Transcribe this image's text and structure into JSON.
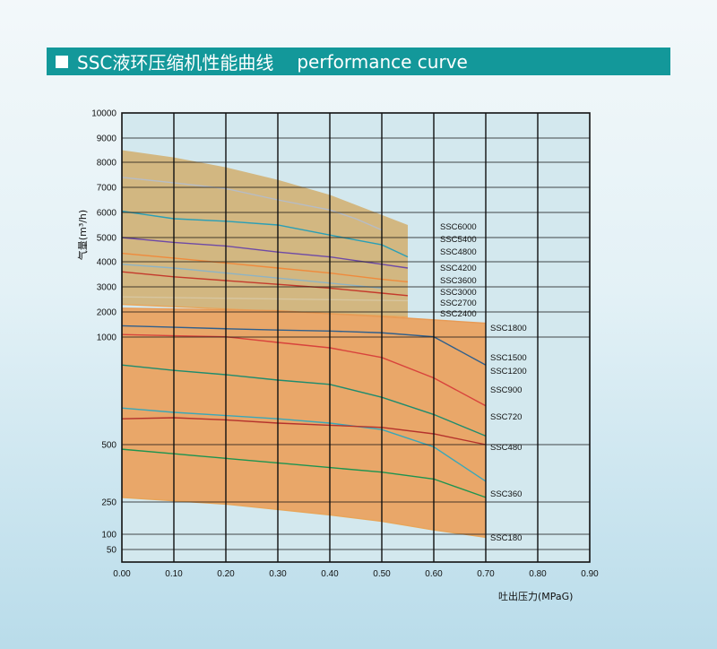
{
  "header": {
    "title_cn": "SSC液环压缩机性能曲线",
    "title_en": "performance curve"
  },
  "chart_data": {
    "type": "line",
    "xlabel": "吐出压力(MPaG)",
    "ylabel": "气量(m³/h)",
    "xlim": [
      0,
      0.9
    ],
    "x_ticks": [
      "0.00",
      "0.10",
      "0.20",
      "0.30",
      "0.40",
      "0.50",
      "0.60",
      "0.70",
      "0.80",
      "0.90"
    ],
    "y_ticks": [
      "10000",
      "9000",
      "8000",
      "7000",
      "6000",
      "5000",
      "4000",
      "3000",
      "2000",
      "1000",
      "500",
      "250",
      "100",
      "50"
    ],
    "grid": true,
    "colors": {
      "band_upper": "#d2b47a",
      "band_lower": "#eaa361",
      "plot_bg": "#d3e8ee",
      "grid": "#111111"
    },
    "bands": [
      {
        "name": "SSC2400-SSC6000",
        "x_range": [
          0,
          0.55
        ],
        "top": [
          [
            0,
            8500
          ],
          [
            0.1,
            8200
          ],
          [
            0.2,
            7800
          ],
          [
            0.3,
            7300
          ],
          [
            0.4,
            6700
          ],
          [
            0.5,
            5900
          ],
          [
            0.55,
            5500
          ]
        ],
        "bottom": [
          [
            0,
            2300
          ],
          [
            0.55,
            1800
          ]
        ]
      },
      {
        "name": "SSC180-SSC1800",
        "x_range": [
          0,
          0.7
        ],
        "top": [
          [
            0,
            2150
          ],
          [
            0.3,
            2050
          ],
          [
            0.55,
            1750
          ],
          [
            0.7,
            1550
          ]
        ],
        "bottom": [
          [
            0,
            270
          ],
          [
            0.2,
            240
          ],
          [
            0.4,
            190
          ],
          [
            0.5,
            160
          ],
          [
            0.6,
            120
          ],
          [
            0.7,
            90
          ]
        ]
      }
    ],
    "series": [
      {
        "name": "SSC6000",
        "color": "#b6bcc6",
        "x": [
          0,
          0.1,
          0.2,
          0.3,
          0.4,
          0.45,
          0.5
        ],
        "y": [
          7400,
          7180,
          6950,
          6500,
          6100,
          5750,
          5300
        ]
      },
      {
        "name": "SSC5400",
        "color": "#2a9fb6",
        "x": [
          0,
          0.1,
          0.2,
          0.3,
          0.4,
          0.45,
          0.5,
          0.55
        ],
        "y": [
          6050,
          5750,
          5650,
          5500,
          5100,
          4900,
          4700,
          4200
        ]
      },
      {
        "name": "SSC4800",
        "color": "#6e4aa6",
        "x": [
          0,
          0.1,
          0.2,
          0.3,
          0.4,
          0.5,
          0.55
        ],
        "y": [
          5000,
          4800,
          4650,
          4400,
          4200,
          3900,
          3750
        ]
      },
      {
        "name": "SSC4200",
        "color": "#ef8a3c",
        "x": [
          0,
          0.1,
          0.2,
          0.3,
          0.4,
          0.5,
          0.55
        ],
        "y": [
          4350,
          4150,
          3950,
          3750,
          3550,
          3300,
          3200
        ]
      },
      {
        "name": "SSC3600",
        "color": "#c43a2c",
        "x": [
          0,
          0.1,
          0.2,
          0.3,
          0.4,
          0.5,
          0.55
        ],
        "y": [
          3600,
          3400,
          3250,
          3100,
          2950,
          2750,
          2650
        ]
      },
      {
        "name": "SSC3000",
        "color": "#8db3c4",
        "x": [
          0,
          0.1,
          0.2,
          0.3,
          0.4,
          0.5
        ],
        "y": [
          3900,
          3750,
          3550,
          3350,
          3150,
          2950
        ]
      },
      {
        "name": "SSC2700",
        "color": "#d7c6a0",
        "x": [
          0,
          0.55
        ],
        "y": [
          2600,
          2450
        ]
      },
      {
        "name": "SSC2400",
        "color": "#e8a55a",
        "x": [
          0,
          0.55
        ],
        "y": [
          2300,
          1800
        ]
      },
      {
        "name": "SSC1800",
        "color": "#e89a55",
        "x": [
          0,
          0.3,
          0.55,
          0.7
        ],
        "y": [
          2150,
          2050,
          1750,
          1550
        ]
      },
      {
        "name": "SSC1500",
        "color": "#2f5f8c",
        "x": [
          0,
          0.1,
          0.2,
          0.3,
          0.4,
          0.5,
          0.6,
          0.7
        ],
        "y": [
          1450,
          1390,
          1330,
          1280,
          1240,
          1170,
          1010,
          870
        ]
      },
      {
        "name": "SSC1200",
        "color": "#d8433c",
        "x": [
          0,
          0.1,
          0.2,
          0.3,
          0.4,
          0.5,
          0.6,
          0.7
        ],
        "y": [
          1100,
          1050,
          1010,
          975,
          950,
          905,
          810,
          680
        ]
      },
      {
        "name": "SSC900",
        "color": "#1e8c6e",
        "x": [
          0,
          0.1,
          0.2,
          0.3,
          0.4,
          0.5,
          0.6,
          0.7
        ],
        "y": [
          870,
          845,
          825,
          800,
          780,
          720,
          640,
          540
        ]
      },
      {
        "name": "SSC720",
        "color": "#3aa7b8",
        "x": [
          0,
          0.1,
          0.2,
          0.3,
          0.4,
          0.5,
          0.6,
          0.7
        ],
        "y": [
          670,
          650,
          635,
          620,
          600,
          570,
          490,
          340
        ]
      },
      {
        "name": "SSC480",
        "color": "#b5322c",
        "x": [
          0,
          0.1,
          0.2,
          0.3,
          0.4,
          0.5,
          0.6,
          0.7
        ],
        "y": [
          620,
          625,
          615,
          600,
          590,
          580,
          550,
          500
        ]
      },
      {
        "name": "SSC360",
        "color": "#1d9450",
        "x": [
          0,
          0.1,
          0.2,
          0.3,
          0.4,
          0.5,
          0.6,
          0.7
        ],
        "y": [
          480,
          460,
          440,
          420,
          400,
          380,
          350,
          270
        ]
      },
      {
        "name": "SSC180",
        "color": "#e8a55a",
        "x": [
          0,
          0.2,
          0.4,
          0.5,
          0.6,
          0.7
        ],
        "y": [
          270,
          240,
          190,
          160,
          120,
          90
        ]
      }
    ],
    "legend": "right end of each curve"
  }
}
